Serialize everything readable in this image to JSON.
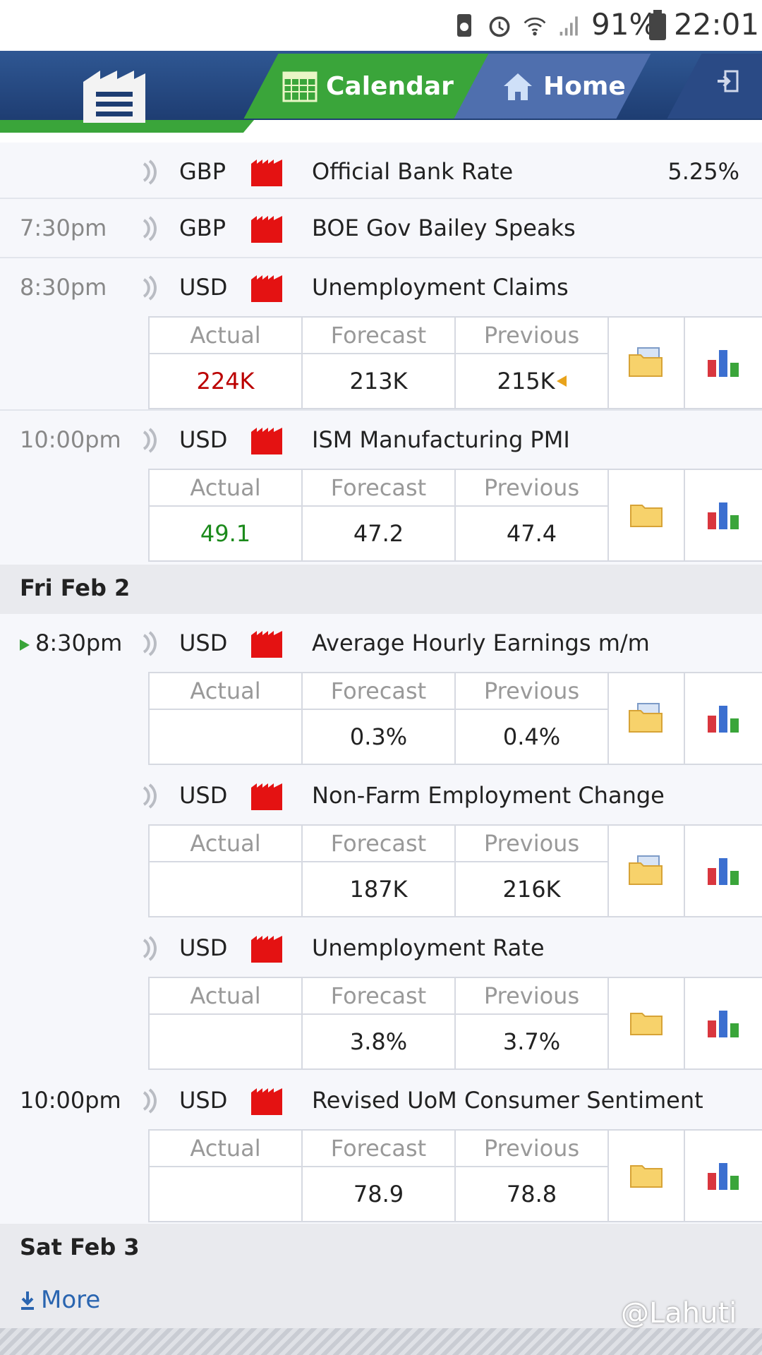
{
  "status_bar": {
    "battery_pct": "91%",
    "time": "22:01"
  },
  "header": {
    "tab_calendar": "Calendar",
    "tab_home": "Home"
  },
  "events": [
    {
      "time": "",
      "currency": "GBP",
      "title": "Official Bank Rate",
      "value": "5.25%"
    },
    {
      "time": "7:30pm",
      "currency": "GBP",
      "title": "BOE Gov Bailey Speaks"
    },
    {
      "time": "8:30pm",
      "currency": "USD",
      "title": "Unemployment Claims",
      "actual": "224K",
      "forecast": "213K",
      "previous": "215K"
    },
    {
      "time": "10:00pm",
      "currency": "USD",
      "title": "ISM Manufacturing PMI",
      "actual": "49.1",
      "forecast": "47.2",
      "previous": "47.4"
    }
  ],
  "table_labels": {
    "actual": "Actual",
    "forecast": "Forecast",
    "previous": "Previous"
  },
  "day2": {
    "header": "Fri Feb 2",
    "events": [
      {
        "time": "8:30pm",
        "currency": "USD",
        "title": "Average Hourly Earnings m/m",
        "actual": "",
        "forecast": "0.3%",
        "previous": "0.4%"
      },
      {
        "time": "",
        "currency": "USD",
        "title": "Non-Farm Employment Change",
        "actual": "",
        "forecast": "187K",
        "previous": "216K"
      },
      {
        "time": "",
        "currency": "USD",
        "title": "Unemployment Rate",
        "actual": "",
        "forecast": "3.8%",
        "previous": "3.7%"
      },
      {
        "time": "10:00pm",
        "currency": "USD",
        "title": "Revised UoM Consumer Sentiment",
        "actual": "",
        "forecast": "78.9",
        "previous": "78.8"
      }
    ]
  },
  "day3": {
    "header": "Sat Feb 3"
  },
  "more_label": "More",
  "watermark": "@Lahuti",
  "colors": {
    "header_blue": "#2f5793",
    "tab_green": "#3aa53a",
    "actual_up": "#1b8a1b",
    "actual_down": "#bb0000"
  }
}
